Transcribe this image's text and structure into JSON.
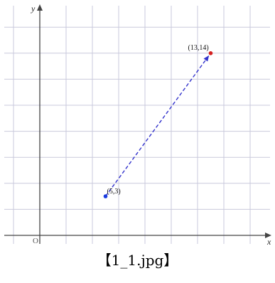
{
  "caption": "【1_1.jpg】",
  "colors": {
    "grid": "#c9c9dc",
    "axis": "#444444",
    "segment": "#3333cc",
    "start_point": "#1a3ce0",
    "end_point": "#d42020"
  },
  "chart_data": {
    "type": "scatter",
    "xlabel": "x",
    "ylabel": "y",
    "origin_label": "O",
    "xlim": [
      -1,
      15
    ],
    "ylim": [
      -1,
      16
    ],
    "grid": true,
    "points": [
      {
        "x": 5,
        "y": 3,
        "label": "(5,3)",
        "color": "#1a3ce0"
      },
      {
        "x": 13,
        "y": 14,
        "label": "(13,14)",
        "color": "#d42020"
      }
    ],
    "segments": [
      {
        "from": [
          5,
          3
        ],
        "to": [
          13,
          14
        ],
        "style": "dashed",
        "color": "#3333cc",
        "arrow": true
      }
    ]
  }
}
